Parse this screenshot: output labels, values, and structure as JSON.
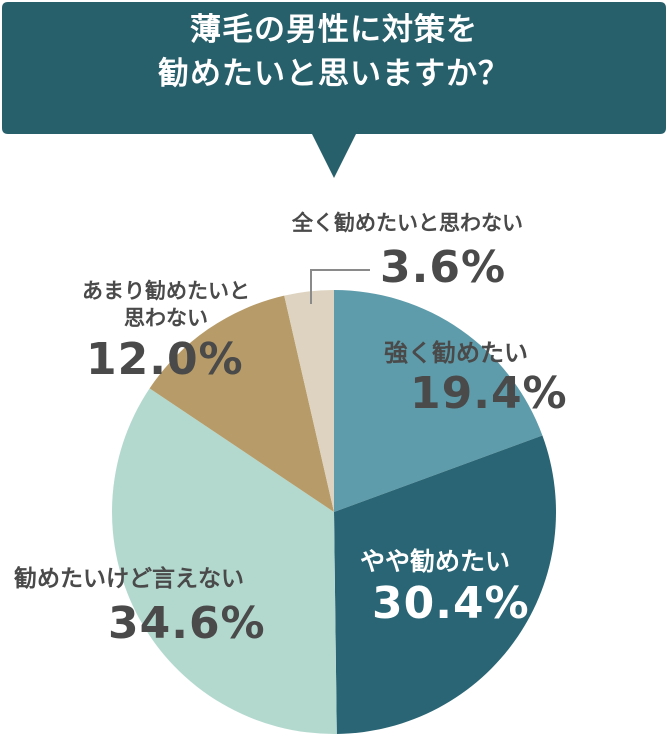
{
  "title": "薄毛の男性に対策を\n勧めたいと思いますか？",
  "colors": {
    "banner": "#27606b",
    "label_text": "#4a4a4a",
    "leader_line": "#8a8a8a"
  },
  "chart_data": {
    "type": "pie",
    "start_angle_deg": 0,
    "direction": "clockwise",
    "slices": [
      {
        "label": "強く勧めたい",
        "value": 19.4,
        "display": "19.4%",
        "color": "#5e9cab"
      },
      {
        "label": "やや勧めたい",
        "value": 30.4,
        "display": "30.4%",
        "color": "#296574"
      },
      {
        "label": "勧めたいけど言えない",
        "value": 34.6,
        "display": "34.6%",
        "color": "#b3d9cf"
      },
      {
        "label": "あまり勧めたいと\n思わない",
        "value": 12.0,
        "display": "12.0%",
        "color": "#b79b68"
      },
      {
        "label": "全く勧めたいと思わない",
        "value": 3.6,
        "display": "3.6%",
        "color": "#ddd3c0"
      }
    ]
  }
}
